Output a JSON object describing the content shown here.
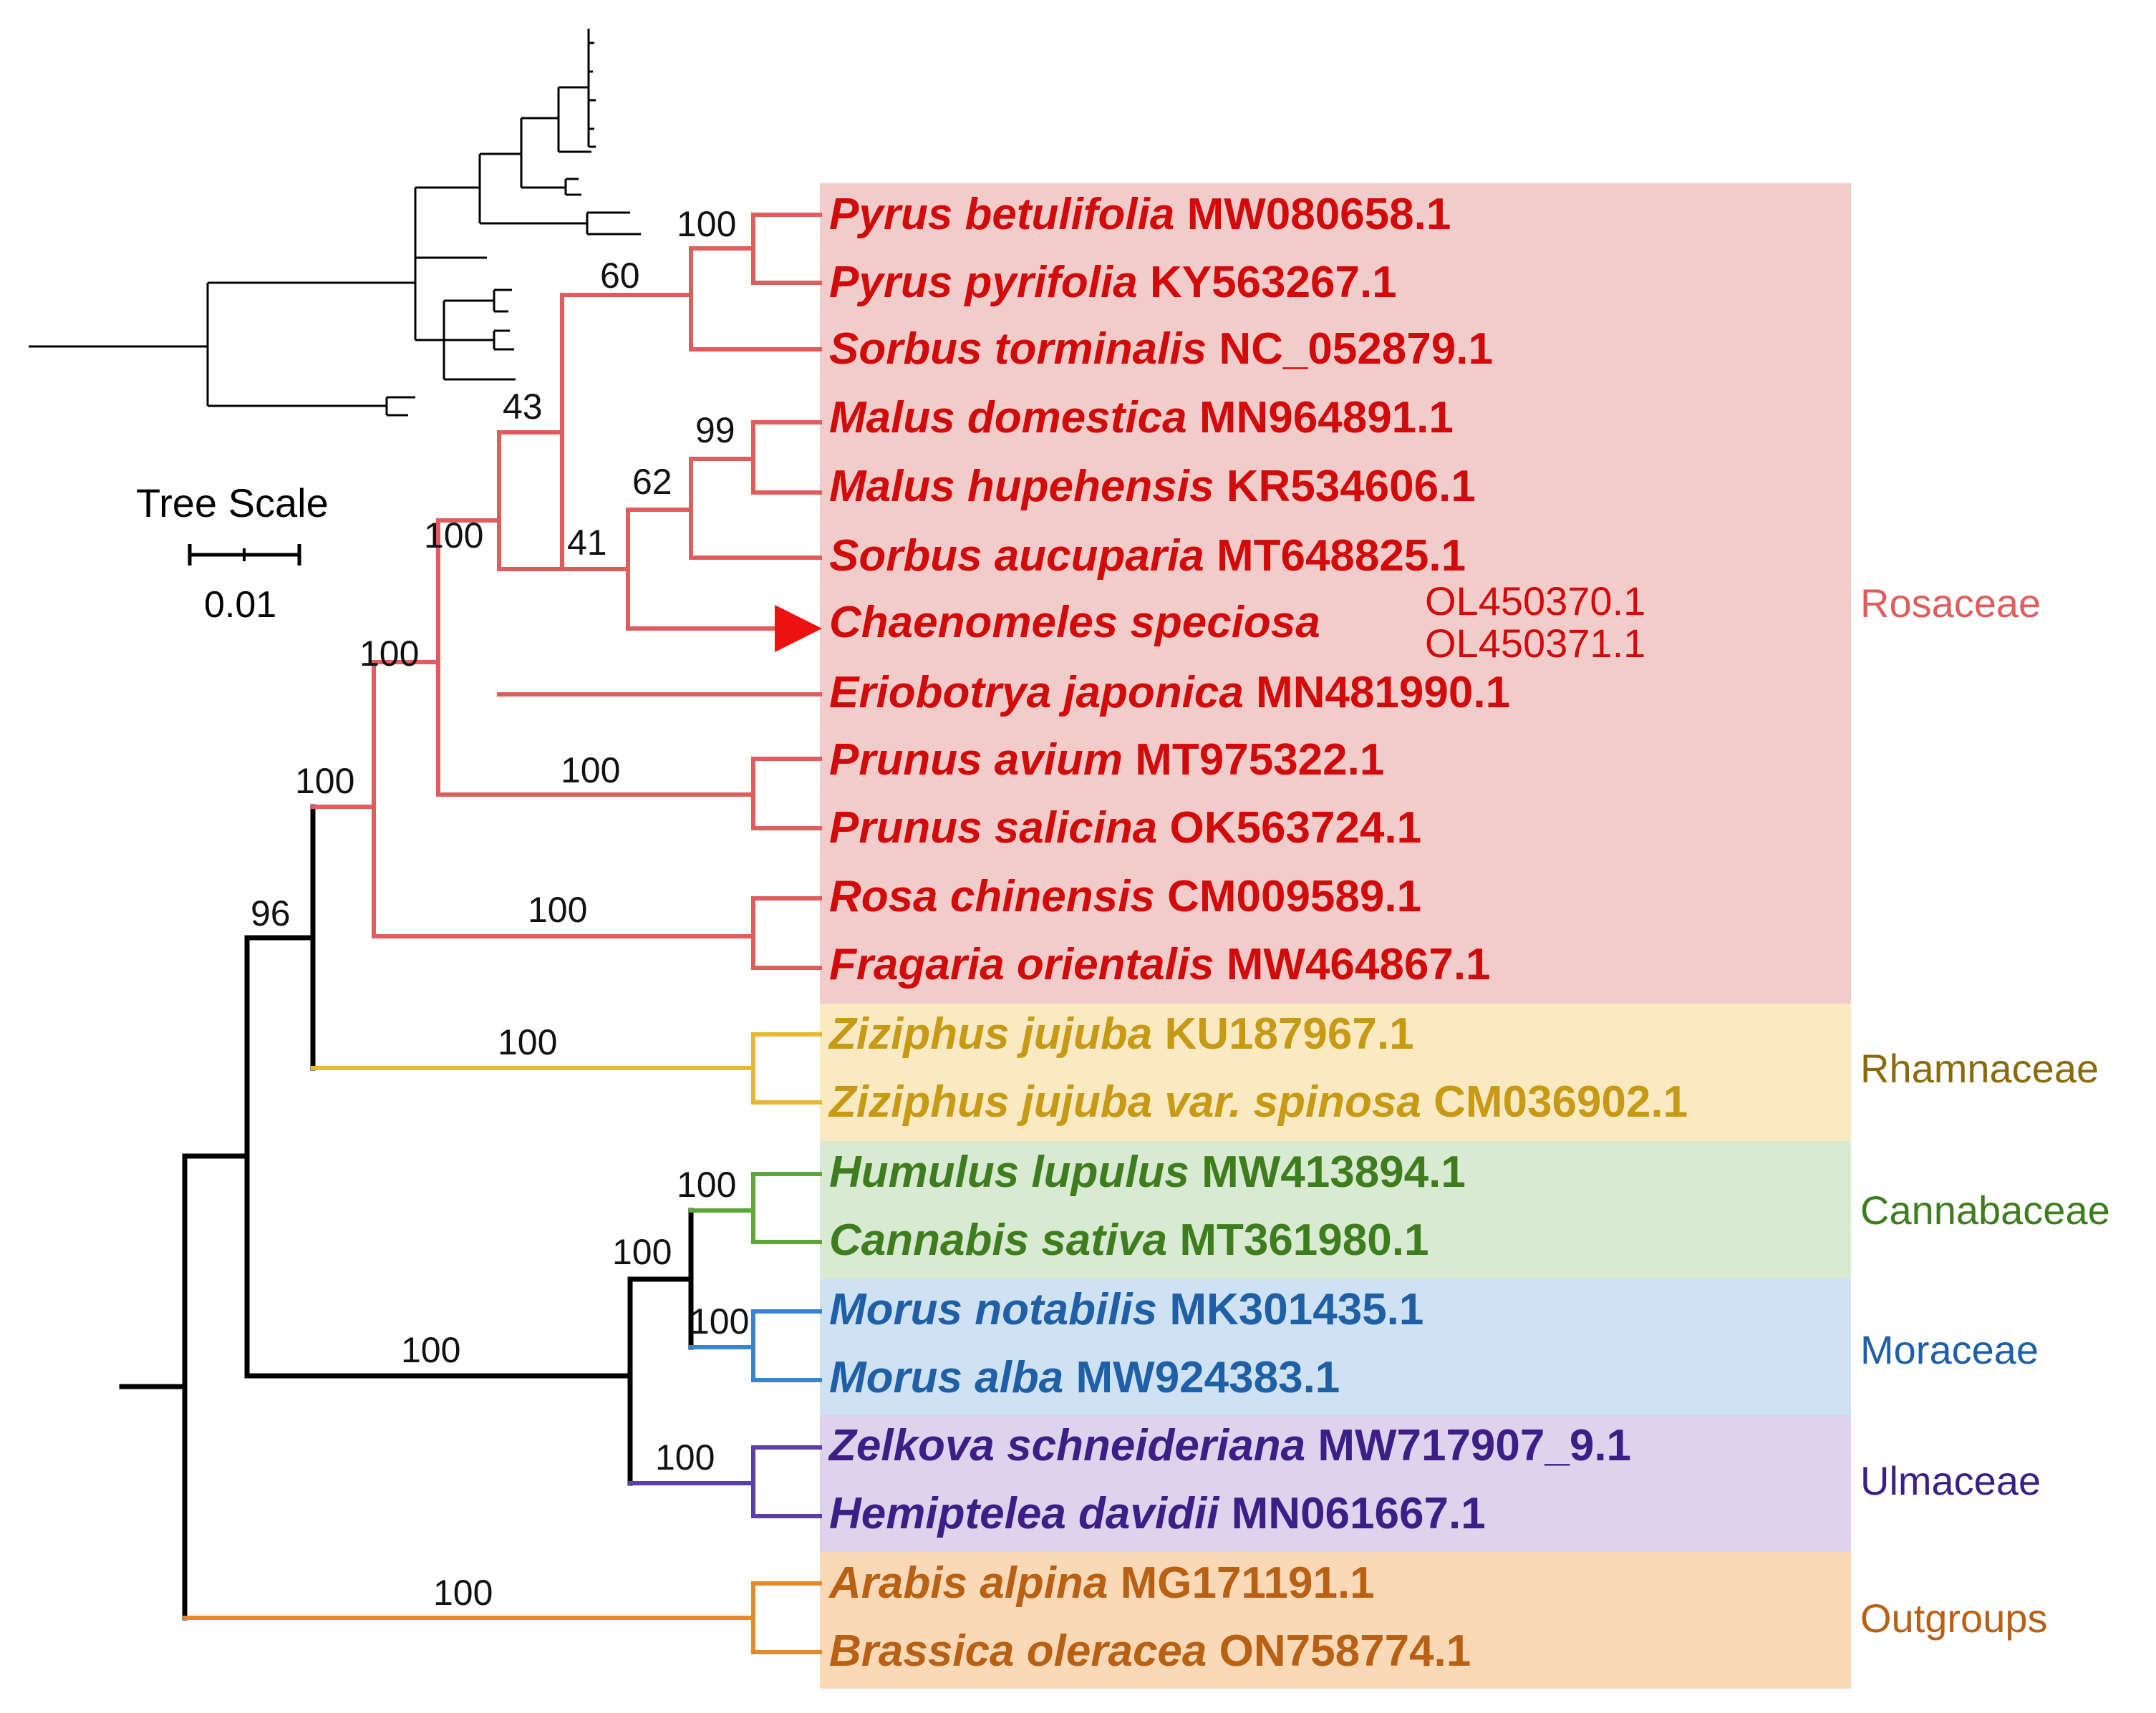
{
  "figure": {
    "colors": {
      "rosaceae_text": "#d10a0a",
      "rosaceae_branch": "#e05d5d",
      "rosaceae_bg": "#f2cbcb",
      "rhamnaceae_text": "#c69a14",
      "rhamnaceae_branch": "#e8b830",
      "rhamnaceae_bg": "#fbe9c2",
      "rhamnaceae_label": "#8a6a0a",
      "cannabaceae_text": "#3e7d1e",
      "cannabaceae_branch": "#5ea53a",
      "cannabaceae_bg": "#d9ead3",
      "moraceae_text": "#1f5fa6",
      "moraceae_branch": "#3a84cc",
      "moraceae_bg": "#cfe2f3",
      "ulmaceae_text": "#3b1f86",
      "ulmaceae_branch": "#5b3fa6",
      "ulmaceae_bg": "#ddd3ec",
      "outgroup_text": "#b86014",
      "outgroup_branch": "#e08a2a",
      "outgroup_bg": "#fbd9b7",
      "backbone": "#000000",
      "marker": "#ee1111"
    },
    "tree_scale": {
      "title": "Tree Scale",
      "value": "0.01"
    },
    "families": [
      {
        "key": "rosaceae",
        "name": "Rosaceae"
      },
      {
        "key": "rhamnaceae",
        "name": "Rhamnaceae"
      },
      {
        "key": "cannabaceae",
        "name": "Cannabaceae"
      },
      {
        "key": "moraceae",
        "name": "Moraceae"
      },
      {
        "key": "ulmaceae",
        "name": "Ulmaceae"
      },
      {
        "key": "outgroups",
        "name": "Outgroups"
      }
    ],
    "taxa": [
      {
        "species": "Pyrus betulifolia",
        "accession": "MW080658.1",
        "family": "rosaceae"
      },
      {
        "species": "Pyrus pyrifolia",
        "accession": "KY563267.1",
        "family": "rosaceae"
      },
      {
        "species": "Sorbus torminalis",
        "accession": "NC_052879.1",
        "family": "rosaceae"
      },
      {
        "species": "Malus domestica",
        "accession": "MN964891.1",
        "family": "rosaceae"
      },
      {
        "species": "Malus hupehensis",
        "accession": "KR534606.1",
        "family": "rosaceae"
      },
      {
        "species": "Sorbus aucuparia",
        "accession": "MT648825.1",
        "family": "rosaceae"
      },
      {
        "species": "Chaenomeles speciosa",
        "accession": "OL450370.1",
        "accession2": "OL450371.1",
        "family": "rosaceae",
        "highlighted": true
      },
      {
        "species": "Eriobotrya japonica",
        "accession": "MN481990.1",
        "family": "rosaceae"
      },
      {
        "species": "Prunus avium",
        "accession": "MT975322.1",
        "family": "rosaceae"
      },
      {
        "species": "Prunus salicina",
        "accession": "OK563724.1",
        "family": "rosaceae"
      },
      {
        "species": "Rosa chinensis",
        "accession": "CM009589.1",
        "family": "rosaceae"
      },
      {
        "species": "Fragaria orientalis",
        "accession": "MW464867.1",
        "family": "rosaceae"
      },
      {
        "species": "Ziziphus jujuba",
        "accession": "KU187967.1",
        "family": "rhamnaceae"
      },
      {
        "species": "Ziziphus jujuba var. spinosa",
        "accession": "CM036902.1",
        "family": "rhamnaceae"
      },
      {
        "species": "Humulus lupulus",
        "accession": "MW413894.1",
        "family": "cannabaceae"
      },
      {
        "species": "Cannabis sativa",
        "accession": "MT361980.1",
        "family": "cannabaceae"
      },
      {
        "species": "Morus notabilis",
        "accession": "MK301435.1",
        "family": "moraceae"
      },
      {
        "species": "Morus alba",
        "accession": "MW924383.1",
        "family": "moraceae"
      },
      {
        "species": "Zelkova schneideriana",
        "accession": "MW717907_9.1",
        "family": "ulmaceae"
      },
      {
        "species": "Hemiptelea davidii",
        "accession": "MN061667.1",
        "family": "ulmaceae"
      },
      {
        "species": "Arabis alpina",
        "accession": "MG171191.1",
        "family": "outgroups"
      },
      {
        "species": "Brassica oleracea",
        "accession": "ON758774.1",
        "family": "outgroups"
      }
    ],
    "support_values": [
      {
        "clade": "Pyrus betulifolia + Pyrus pyrifolia",
        "value": "100"
      },
      {
        "clade": "Pyrus + Sorbus torminalis",
        "value": "60"
      },
      {
        "clade": "Malus domestica + Malus hupehensis",
        "value": "99"
      },
      {
        "clade": "Malus + Sorbus aucuparia",
        "value": "62"
      },
      {
        "clade": "Malus/Sorbus aucuparia + Chaenomeles",
        "value": "41"
      },
      {
        "clade": "Pyrus group + Malus group",
        "value": "43"
      },
      {
        "clade": "Maleae + Eriobotrya",
        "value": "100"
      },
      {
        "clade": "Prunus avium + Prunus salicina",
        "value": "100"
      },
      {
        "clade": "Maleae + Prunus",
        "value": "100"
      },
      {
        "clade": "Rosa + Fragaria",
        "value": "100"
      },
      {
        "clade": "Rosaceae",
        "value": "100"
      },
      {
        "clade": "Ziziphus",
        "value": "100"
      },
      {
        "clade": "Rosaceae + Rhamnaceae",
        "value": "96"
      },
      {
        "clade": "Humulus + Cannabis",
        "value": "100"
      },
      {
        "clade": "Morus",
        "value": "100"
      },
      {
        "clade": "Cannabaceae + Moraceae",
        "value": "100"
      },
      {
        "clade": "Zelkova + Hemiptelea",
        "value": "100"
      },
      {
        "clade": "Urticalean clade",
        "value": "100"
      },
      {
        "clade": "Outgroups",
        "value": "100"
      }
    ]
  }
}
